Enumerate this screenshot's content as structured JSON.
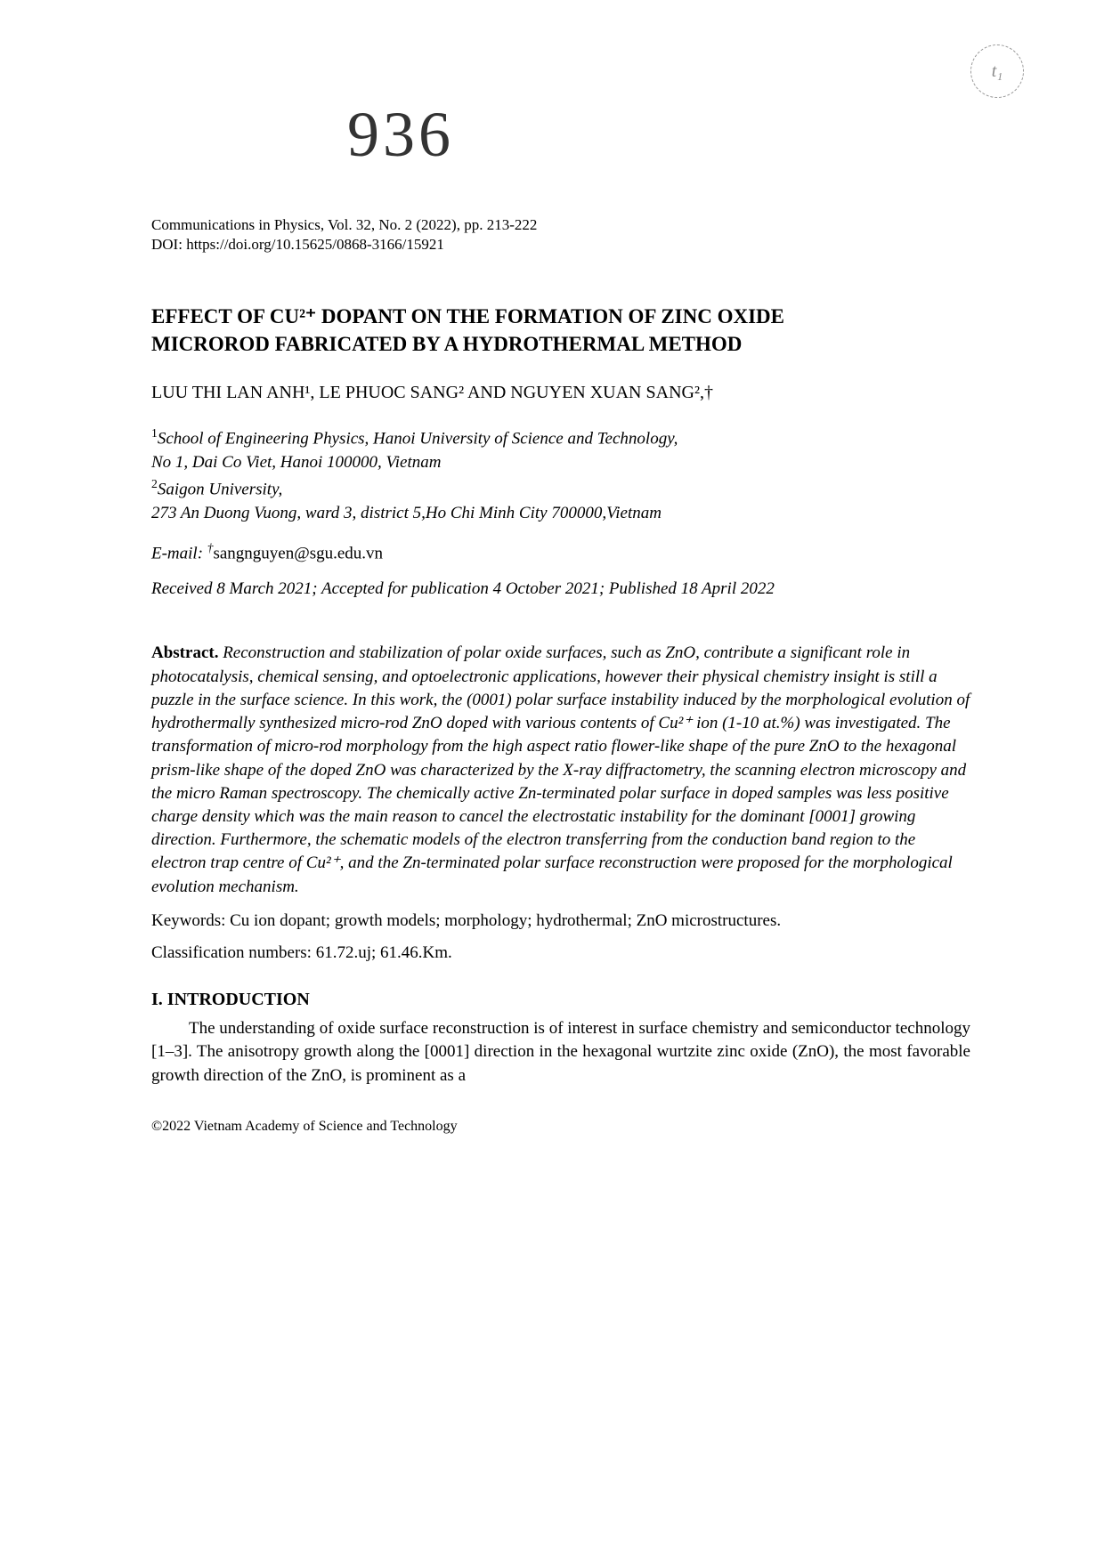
{
  "page_stamp": "t₁",
  "handwritten_number": "936",
  "journal_info": "Communications in Physics, Vol. 32, No. 2 (2022), pp. 213-222",
  "doi": "DOI: https://doi.org/10.15625/0868-3166/15921",
  "title_line1": "EFFECT OF CU²⁺ DOPANT ON THE FORMATION OF ZINC OXIDE",
  "title_line2": "MICROROD FABRICATED BY A HYDROTHERMAL METHOD",
  "authors": "LUU THI LAN ANH¹, LE PHUOC SANG² AND NGUYEN XUAN SANG²,†",
  "affiliations": {
    "a1_sup": "1",
    "a1_line1": "School of Engineering Physics, Hanoi University of Science and Technology,",
    "a1_line2": "No 1, Dai Co Viet, Hanoi 100000, Vietnam",
    "a2_sup": "2",
    "a2_line1": "Saigon University,",
    "a2_line2": "273 An Duong Vuong, ward 3, district 5,Ho Chi Minh City 700000,Vietnam"
  },
  "email_label": "E-mail: ",
  "email_sup": "†",
  "email_addr": "sangnguyen@sgu.edu.vn",
  "dates": "Received 8 March 2021; Accepted for publication 4 October 2021; Published 18 April 2022",
  "abstract_label": "Abstract. ",
  "abstract_body": "Reconstruction and stabilization of polar oxide surfaces, such as ZnO, contribute a significant role in photocatalysis, chemical sensing, and optoelectronic applications, however their physical chemistry insight is still a puzzle in the surface science. In this work, the (0001) polar surface instability induced by the morphological evolution of hydrothermally synthesized micro-rod ZnO doped with various contents of Cu²⁺ ion (1-10 at.%) was investigated. The transformation of micro-rod morphology from the high aspect ratio flower-like shape of the pure ZnO to the hexagonal prism-like shape of the doped ZnO was characterized by the X-ray diffractometry, the scanning electron microscopy and the micro Raman spectroscopy. The chemically active Zn-terminated polar surface in doped samples was less positive charge density which was the main reason to cancel the electrostatic instability for the dominant [0001] growing direction. Furthermore, the schematic models of the electron transferring from the conduction band region to the electron trap centre of Cu²⁺, and the Zn-terminated polar surface reconstruction were proposed for the morphological evolution mechanism.",
  "keywords": "Keywords: Cu ion dopant; growth models; morphology; hydrothermal; ZnO microstructures.",
  "classnums": "Classification numbers: 61.72.uj; 61.46.Km.",
  "section_heading": "I. INTRODUCTION",
  "intro_para": "The understanding of oxide surface reconstruction is of interest in surface chemistry and semiconductor technology [1–3]. The anisotropy growth along the [0001] direction in the hexagonal wurtzite zinc oxide (ZnO), the most favorable growth direction of the ZnO, is prominent as a",
  "copyright": "©2022 Vietnam Academy of Science and Technology"
}
